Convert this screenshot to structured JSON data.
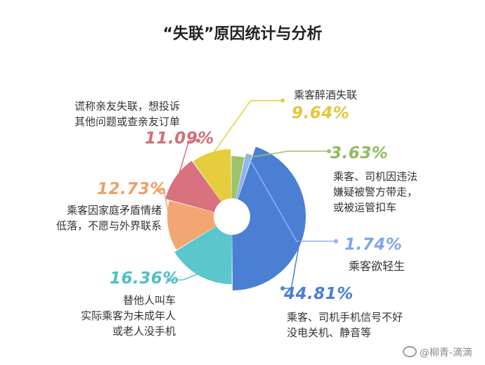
{
  "chart_data": {
    "type": "pie",
    "title": "“失联”原因统计与分析",
    "slices": [
      {
        "label": "乘客醉酒失联",
        "value": 9.64,
        "pct_text": "9.64%",
        "color": "#e6cd3e"
      },
      {
        "label": "乘客、司机因违法嫌疑被警方带走，或被运管扣车",
        "value": 3.63,
        "pct_text": "3.63%",
        "color": "#9dc46a"
      },
      {
        "label": "乘客欲轻生",
        "value": 1.74,
        "pct_text": "1.74%",
        "color": "#8fb3f0"
      },
      {
        "label": "乘客、司机手机信号不好没电关机、静音等",
        "value": 44.81,
        "pct_text": "44.81%",
        "color": "#4a7fd4"
      },
      {
        "label": "替他人叫车实际乘客为未成年人或老人没手机",
        "value": 16.36,
        "pct_text": "16.36%",
        "color": "#5bc6cc"
      },
      {
        "label": "乘客因家庭矛盾情绪低落，不愿与外界联系",
        "value": 12.73,
        "pct_text": "12.73%",
        "color": "#f2a672"
      },
      {
        "label": "谎称亲友失联，想投诉其他问题或查亲友订单",
        "value": 11.09,
        "pct_text": "11.09%",
        "color": "#d7727e"
      }
    ]
  },
  "labels": {
    "drunk": {
      "pct": "9.64%",
      "line1": "乘客醉酒失联"
    },
    "police": {
      "pct": "3.63%",
      "line1": "乘客、司机因违法",
      "line2": "嫌疑被警方带走，",
      "line3": "或被运管扣车"
    },
    "suicide": {
      "pct": "1.74%",
      "line1": "乘客欲轻生"
    },
    "phone": {
      "pct": "44.81%",
      "line1": "乘客、司机手机信号不好",
      "line2": "没电关机、静音等"
    },
    "proxy": {
      "pct": "16.36%",
      "line1": "替他人叫车",
      "line2": "实际乘客为未成年人",
      "line3": "或老人没手机"
    },
    "family": {
      "pct": "12.73%",
      "line1": "乘客因家庭矛盾情绪",
      "line2": "低落，不愿与外界联系"
    },
    "fake": {
      "pct": "11.09%",
      "line1": "谎称亲友失联，想投诉",
      "line2": "其他问题或查亲友订单"
    }
  },
  "watermark": "@柳青-滴滴"
}
